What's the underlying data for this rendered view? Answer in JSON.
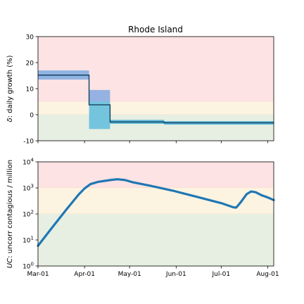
{
  "chart_data": [
    {
      "type": "line",
      "title": "Rhode Island",
      "xlabel": "",
      "ylabel": "δ: daily growth (%)",
      "ylabel_symbol": "δ",
      "ylabel_text": ": daily growth (%)",
      "xlim": [
        "2020-03-01",
        "2020-08-05"
      ],
      "ylim": [
        -10,
        30
      ],
      "y_ticks": [
        -10,
        0,
        10,
        20,
        30
      ],
      "x_ticks": [
        "2020-03-01",
        "2020-04-01",
        "2020-05-01",
        "2020-06-01",
        "2020-07-01",
        "2020-08-01"
      ],
      "zones": [
        {
          "from": 5,
          "to": 30,
          "color": "#fde3e3"
        },
        {
          "from": 0,
          "to": 5,
          "color": "#fdf3e1"
        },
        {
          "from": -10,
          "to": 0,
          "color": "#e7efe2"
        }
      ],
      "bands": [
        {
          "x_start": "2020-03-01",
          "x_end": "2020-04-04",
          "y_low": 13.5,
          "y_high": 17.0,
          "color": "#8fb3e3"
        },
        {
          "x_start": "2020-04-04",
          "x_end": "2020-04-18",
          "y_low": 5.0,
          "y_high": 9.5,
          "color": "#95b2e2"
        },
        {
          "x_start": "2020-04-04",
          "x_end": "2020-04-18",
          "y_low": -5.5,
          "y_high": 5.0,
          "color": "#74c4dd"
        },
        {
          "x_start": "2020-04-18",
          "x_end": "2020-05-24",
          "y_low": -3.5,
          "y_high": -2.0,
          "color": "#59b5d9"
        },
        {
          "x_start": "2020-05-24",
          "x_end": "2020-08-05",
          "y_low": -3.8,
          "y_high": -2.5,
          "color": "#59b5d9"
        }
      ],
      "series": [
        {
          "color": "#1f77b4",
          "points": [
            [
              "2020-03-01",
              15.2
            ],
            [
              "2020-04-04",
              15.2
            ],
            [
              "2020-04-04",
              3.8
            ],
            [
              "2020-04-18",
              3.8
            ],
            [
              "2020-04-18",
              -2.8
            ],
            [
              "2020-05-24",
              -2.8
            ],
            [
              "2020-05-24",
              -3.1
            ],
            [
              "2020-08-05",
              -3.1
            ]
          ]
        }
      ]
    },
    {
      "type": "line",
      "xlabel": "",
      "ylabel": "UC: uncorr contagious / million",
      "ylabel_symbol": "UC",
      "ylabel_text": ": uncorr contagious / million",
      "yscale": "log",
      "xlim": [
        "2020-03-01",
        "2020-08-05"
      ],
      "ylim": [
        1,
        10000
      ],
      "y_ticks": [
        {
          "value": 1,
          "base": "10",
          "exp": "0"
        },
        {
          "value": 10,
          "base": "10",
          "exp": "1"
        },
        {
          "value": 100,
          "base": "10",
          "exp": "2"
        },
        {
          "value": 1000,
          "base": "10",
          "exp": "3"
        },
        {
          "value": 10000,
          "base": "10",
          "exp": "4"
        }
      ],
      "x_ticks": [
        "2020-03-01",
        "2020-04-01",
        "2020-05-01",
        "2020-06-01",
        "2020-07-01",
        "2020-08-01"
      ],
      "x_tick_labels": [
        "Mar-01",
        "Apr-01",
        "May-01",
        "Jun-01",
        "Jul-01",
        "Aug-01"
      ],
      "zones": [
        {
          "from": 1000,
          "to": 10000,
          "color": "#fde3e3"
        },
        {
          "from": 100,
          "to": 1000,
          "color": "#fdf3e1"
        },
        {
          "from": 1,
          "to": 100,
          "color": "#e7efe2"
        }
      ],
      "series": [
        {
          "color": "#1f77b4",
          "points": [
            [
              "2020-03-01",
              6
            ],
            [
              "2020-03-10",
              28
            ],
            [
              "2020-03-20",
              150
            ],
            [
              "2020-03-28",
              550
            ],
            [
              "2020-04-01",
              950
            ],
            [
              "2020-04-05",
              1400
            ],
            [
              "2020-04-10",
              1700
            ],
            [
              "2020-04-18",
              2000
            ],
            [
              "2020-04-23",
              2150
            ],
            [
              "2020-04-28",
              2000
            ],
            [
              "2020-05-03",
              1650
            ],
            [
              "2020-05-15",
              1200
            ],
            [
              "2020-05-31",
              750
            ],
            [
              "2020-06-15",
              450
            ],
            [
              "2020-07-01",
              260
            ],
            [
              "2020-07-09",
              180
            ],
            [
              "2020-07-11",
              175
            ],
            [
              "2020-07-14",
              280
            ],
            [
              "2020-07-18",
              580
            ],
            [
              "2020-07-21",
              730
            ],
            [
              "2020-07-24",
              680
            ],
            [
              "2020-07-28",
              520
            ],
            [
              "2020-08-01",
              430
            ],
            [
              "2020-08-05",
              340
            ]
          ]
        }
      ]
    }
  ]
}
